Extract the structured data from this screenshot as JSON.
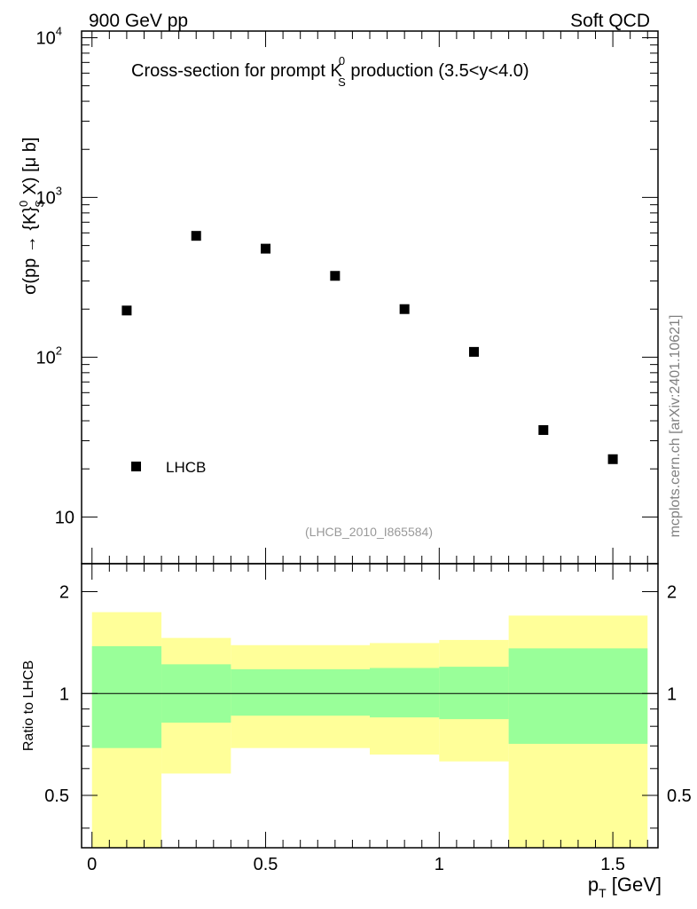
{
  "header": {
    "left": "900 GeV pp",
    "right": "Soft QCD"
  },
  "watermark": "mcplots.cern.ch [arXiv:2401.10621]",
  "analysis_tag": "(LHCB_2010_I865584)",
  "colors": {
    "green_band": "#99ff99",
    "yellow_band": "#ffff99",
    "markers": "#000000",
    "tag_text": "#999999"
  },
  "chart_data": [
    {
      "type": "scatter",
      "scale": "log",
      "title_parts": {
        "before": "Cross-section for prompt K",
        "sup": "0",
        "sub": "S",
        "after": " production (3.5<y<4.0)"
      },
      "ylabel_parts": {
        "before": "σ(pp → {K}",
        "sup": "0",
        "sub": "S",
        "after": " X) [μ b]"
      },
      "y_tick_labels": {
        "10": "10",
        "100": "10",
        "1000": "10",
        "10000": "10"
      },
      "y_tick_exponents": {
        "100": "2",
        "1000": "3",
        "10000": "4"
      },
      "ylim": [
        5.1,
        11000
      ],
      "legend": {
        "label": "LHCB",
        "position": "bottom-left"
      },
      "series": [
        {
          "name": "LHCB",
          "x": [
            0.1,
            0.3,
            0.5,
            0.7,
            0.9,
            1.1,
            1.3,
            1.5
          ],
          "y": [
            196,
            575,
            478,
            323,
            200,
            108,
            35,
            23
          ]
        }
      ]
    },
    {
      "type": "area",
      "ylabel": "Ratio to LHCB",
      "y_tick_labels": [
        "0.5",
        "1",
        "2"
      ],
      "y_ticks": [
        0.5,
        1,
        2
      ],
      "ylim": [
        0.35,
        2.42
      ],
      "reference_line": 1,
      "bins": [
        {
          "lo": 0.0,
          "hi": 0.2,
          "green": [
            0.69,
            1.38
          ],
          "yellow": [
            0.35,
            1.74
          ]
        },
        {
          "lo": 0.2,
          "hi": 0.4,
          "green": [
            0.82,
            1.22
          ],
          "yellow": [
            0.58,
            1.46
          ]
        },
        {
          "lo": 0.4,
          "hi": 0.8,
          "green": [
            0.86,
            1.18
          ],
          "yellow": [
            0.69,
            1.39
          ]
        },
        {
          "lo": 0.8,
          "hi": 1.0,
          "green": [
            0.85,
            1.19
          ],
          "yellow": [
            0.66,
            1.41
          ]
        },
        {
          "lo": 1.0,
          "hi": 1.2,
          "green": [
            0.84,
            1.2
          ],
          "yellow": [
            0.63,
            1.44
          ]
        },
        {
          "lo": 1.2,
          "hi": 1.6,
          "green": [
            0.71,
            1.36
          ],
          "yellow": [
            0.35,
            1.7
          ]
        }
      ]
    }
  ],
  "x_axis": {
    "label_main": "p",
    "label_sub": "T",
    "label_unit": " [GeV]",
    "xlim": [
      -0.03,
      1.63
    ],
    "tick_values": [
      0,
      0.5,
      1,
      1.5
    ],
    "tick_labels": [
      "0",
      "0.5",
      "1",
      "1.5"
    ]
  }
}
